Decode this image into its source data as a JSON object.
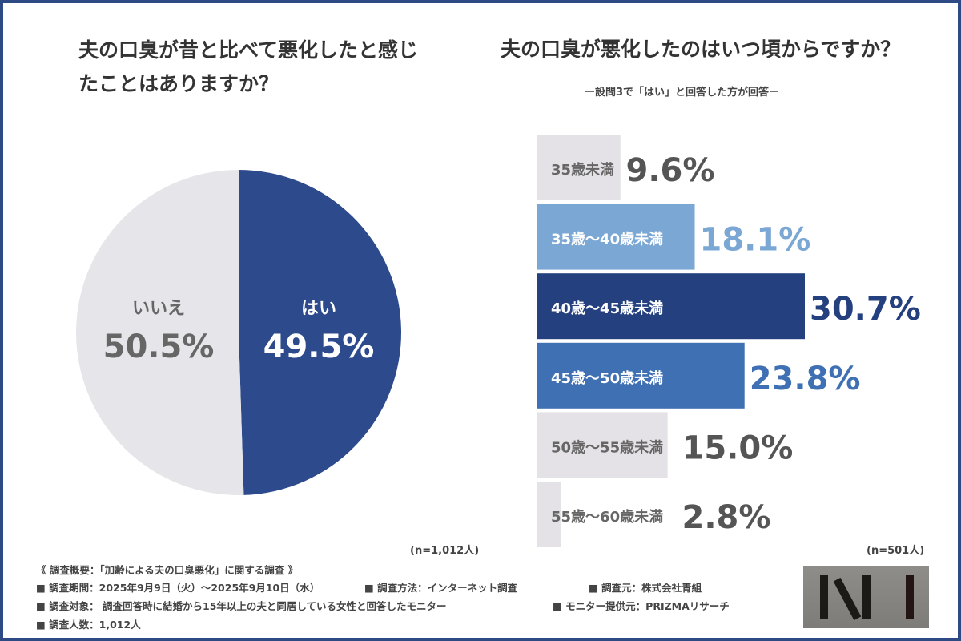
{
  "chart_data": [
    {
      "type": "pie",
      "title": "夫の口臭が昔と比べて悪化したと感じたことはありますか？",
      "slices": [
        {
          "label": "はい",
          "value": 49.5,
          "color": "#2c4a8c"
        },
        {
          "label": "いいえ",
          "value": 50.5,
          "color": "#e6e5e9"
        }
      ],
      "note": "(n=1,012人)"
    },
    {
      "type": "bar",
      "orientation": "horizontal",
      "title": "夫の口臭が悪化したのはいつ頃からですか？",
      "subtitle": "ー設問3で「はい」と回答した方が回答ー",
      "categories": [
        "35歳未満",
        "35歳～40歳未満",
        "40歳～45歳未満",
        "45歳～50歳未満",
        "50歳～55歳未満",
        "55歳～60歳未満"
      ],
      "values": [
        9.6,
        18.1,
        30.7,
        23.8,
        15.0,
        2.8
      ],
      "colors": [
        "#e4e2e6",
        "#7ba7d4",
        "#24407f",
        "#3f70b3",
        "#e4e2e6",
        "#e4e2e6"
      ],
      "note": "(n=501人)"
    }
  ],
  "footer": {
    "heading": "《 調査概要：「加齢による夫の口臭悪化」に関する調査 》",
    "period": "■ 調査期間：2025年9月9日（火）～2025年9月10日（水）",
    "method": "■ 調査方法：インターネット調査",
    "source": "■ 調査元：株式会社青組",
    "target": "■ 調査対象： 調査回答時に結婚から15年以上の夫と同居している女性と回答したモニター",
    "provider": "■ モニター提供元：PRIZMAリサーチ",
    "count": "■ 調査人数：1,012人"
  },
  "logo": {
    "text": "N I"
  }
}
